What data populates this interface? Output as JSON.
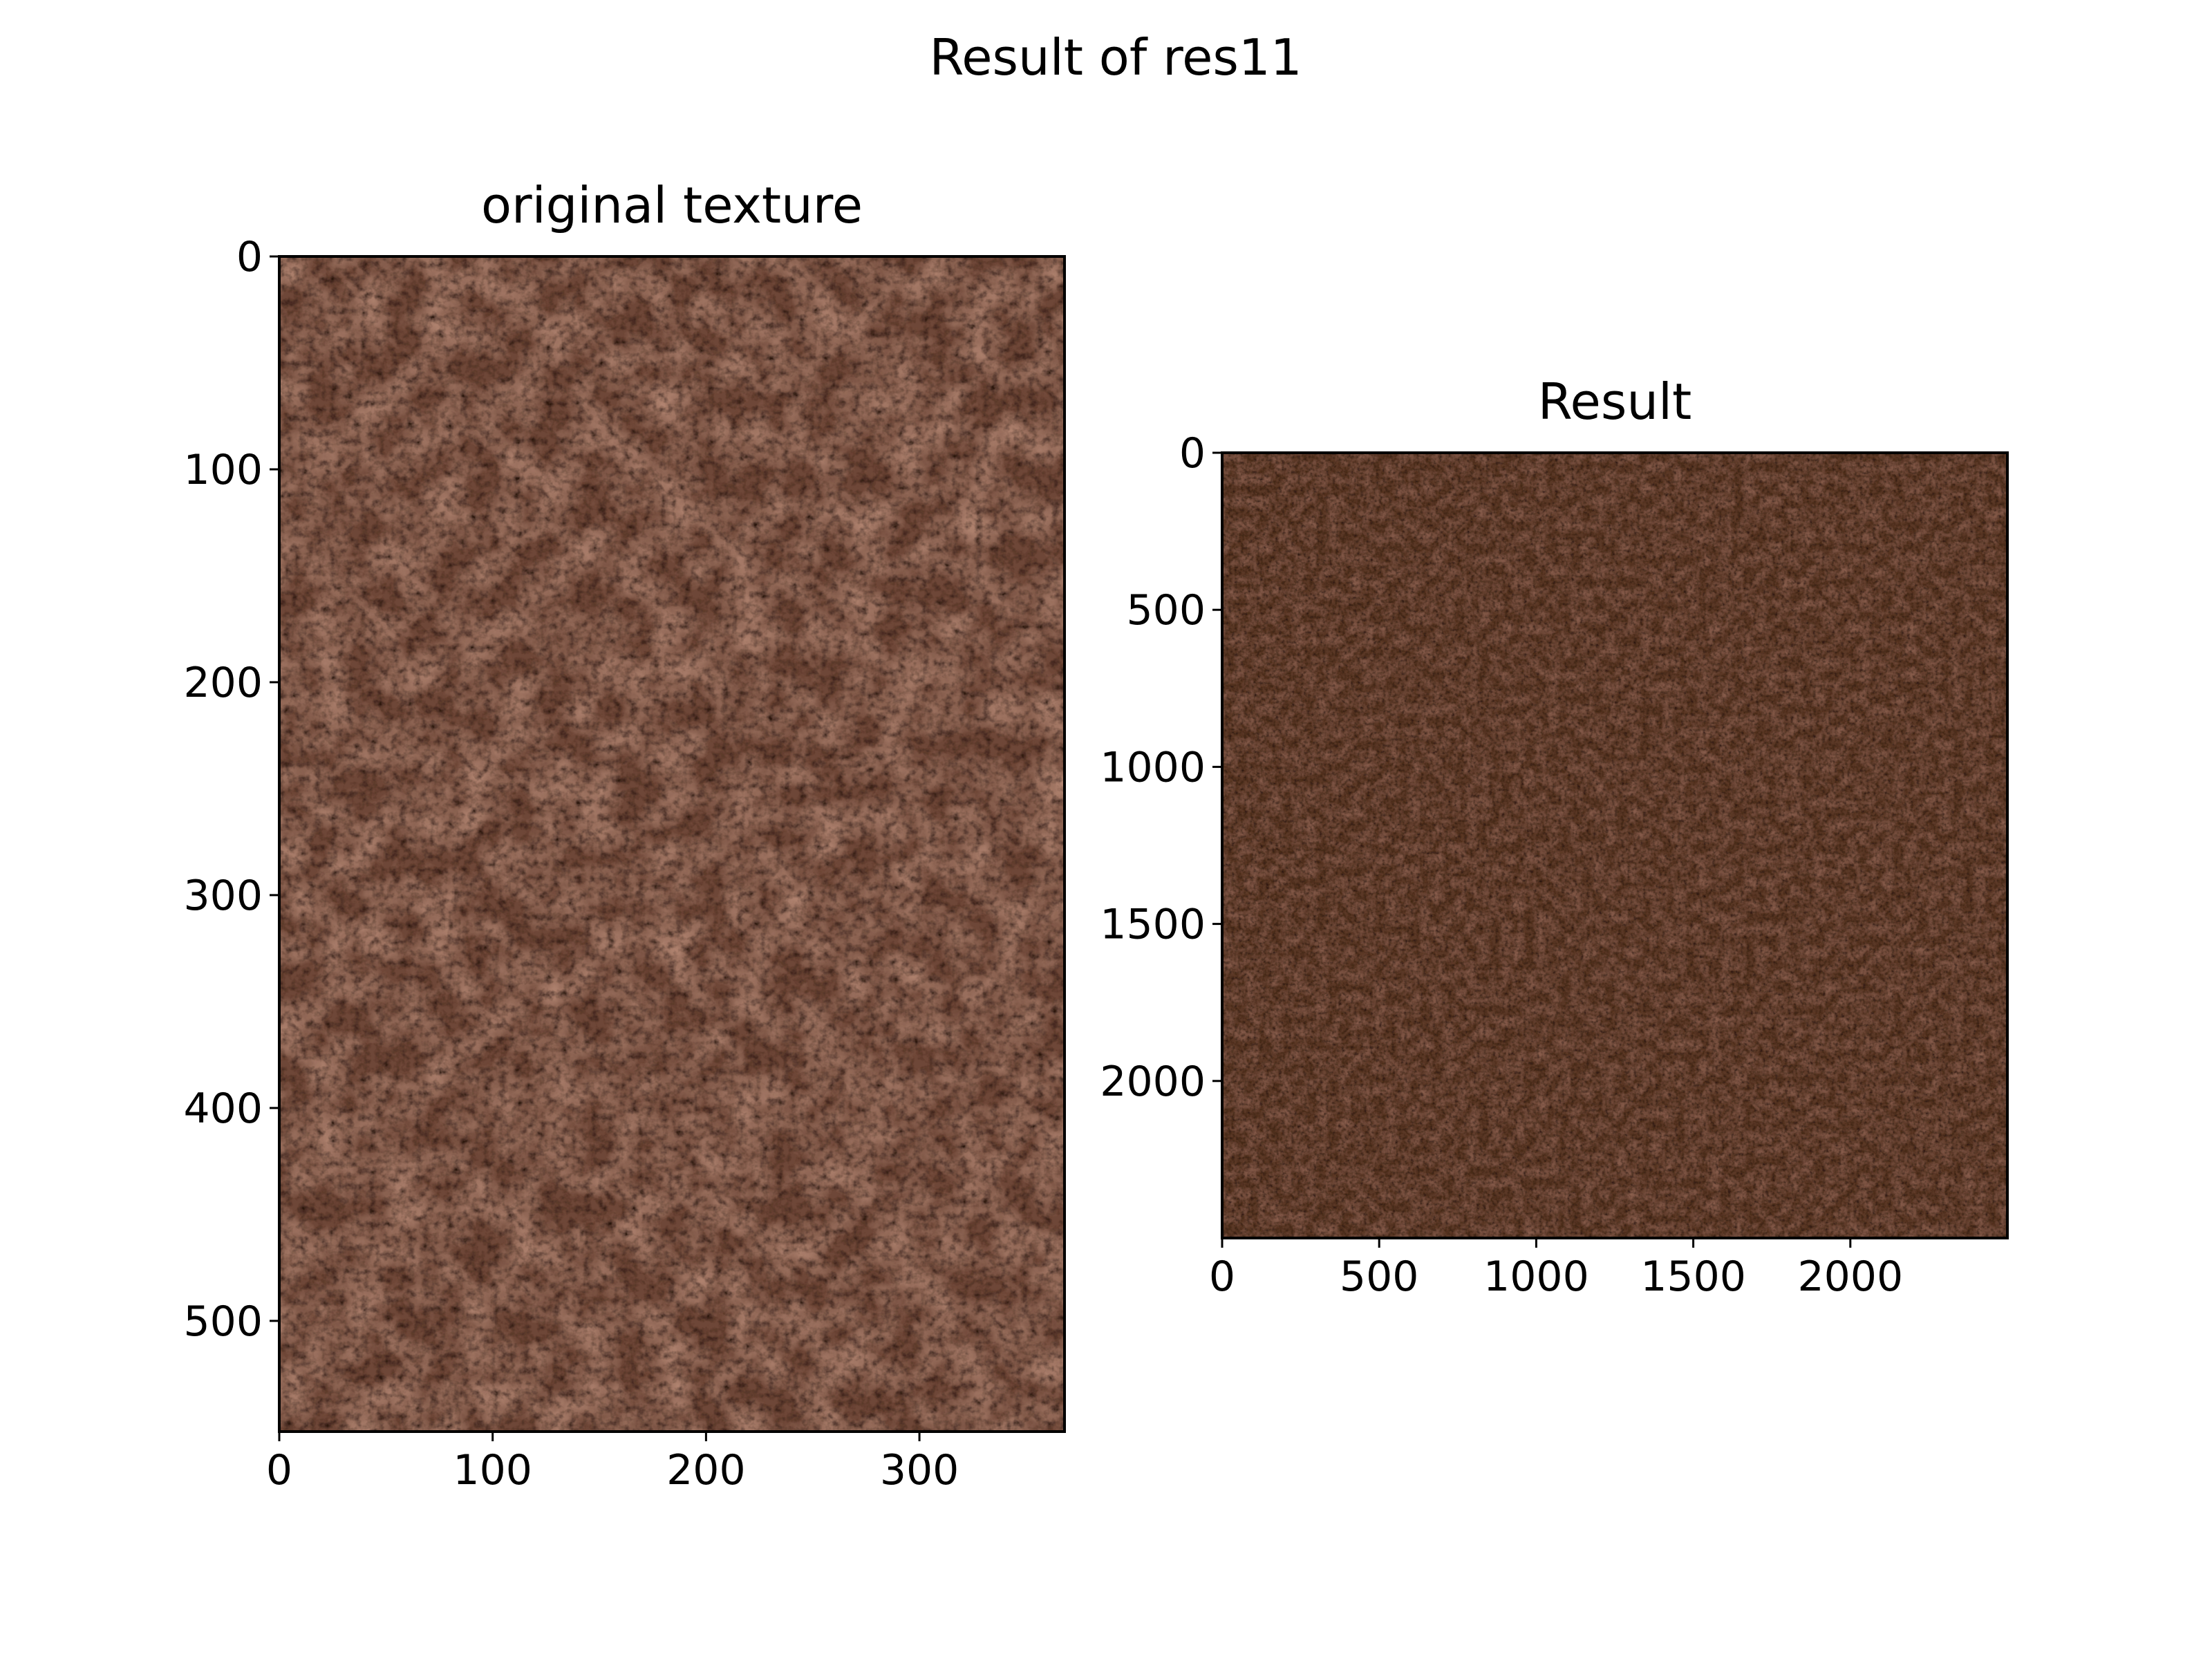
{
  "chart_data": {
    "title": "Result of res11",
    "type": "image-grid",
    "panels": [
      {
        "title": "original texture",
        "xlim": [
          0,
          368
        ],
        "ylim": [
          0,
          552
        ],
        "y_inverted": true,
        "xticks": [
          0,
          100,
          200,
          300
        ],
        "yticks": [
          0,
          100,
          200,
          300,
          400,
          500
        ],
        "texture": {
          "base": "#6e4738",
          "dark": "#2a1610",
          "light": "#b88a76",
          "grain": "coarse"
        }
      },
      {
        "title": "Result",
        "xlim": [
          0,
          2500
        ],
        "ylim": [
          0,
          2500
        ],
        "y_inverted": true,
        "xticks": [
          0,
          500,
          1000,
          1500,
          2000
        ],
        "yticks": [
          0,
          500,
          1000,
          1500,
          2000
        ],
        "texture": {
          "base": "#5a3728",
          "dark": "#24130c",
          "light": "#8f6352",
          "grain": "fine"
        }
      }
    ]
  }
}
